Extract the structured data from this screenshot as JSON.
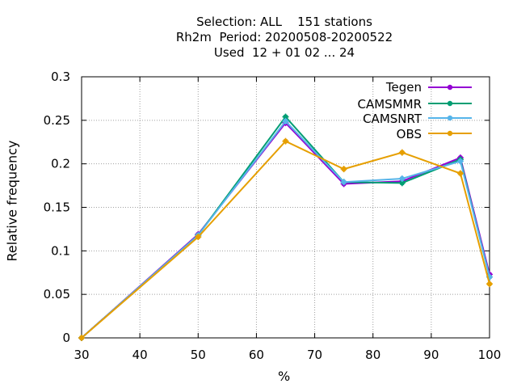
{
  "chart_data": {
    "type": "line",
    "title_lines": [
      "Selection: ALL    151 stations",
      "Rh2m  Period: 20200508-20200522",
      "Used  12 + 01 02 ... 24"
    ],
    "xlabel": "%",
    "ylabel": "Relative frequency",
    "xlim": [
      30,
      100
    ],
    "ylim": [
      0,
      0.3
    ],
    "x_ticks": [
      30,
      40,
      50,
      60,
      70,
      80,
      90,
      100
    ],
    "y_ticks": [
      0,
      0.05,
      0.1,
      0.15,
      0.2,
      0.25,
      0.3
    ],
    "y_tick_labels": [
      "0",
      "0.05",
      "0.1",
      "0.15",
      "0.2",
      "0.25",
      "0.3"
    ],
    "grid": true,
    "legend_position": "top-right",
    "x": [
      30,
      50,
      65,
      75,
      85,
      95,
      100
    ],
    "series": [
      {
        "name": "Tegen",
        "color": "#9400d3",
        "values": [
          0,
          0.119,
          0.247,
          0.177,
          0.18,
          0.207,
          0.073
        ]
      },
      {
        "name": "CAMSMMR",
        "color": "#009e73",
        "values": [
          0,
          0.118,
          0.254,
          0.179,
          0.178,
          0.205,
          0.07
        ]
      },
      {
        "name": "CAMSNRT",
        "color": "#56b4e9",
        "values": [
          0,
          0.118,
          0.249,
          0.179,
          0.183,
          0.203,
          0.07
        ]
      },
      {
        "name": "OBS",
        "color": "#e69f00",
        "values": [
          0,
          0.116,
          0.226,
          0.194,
          0.213,
          0.189,
          0.062
        ]
      }
    ]
  }
}
